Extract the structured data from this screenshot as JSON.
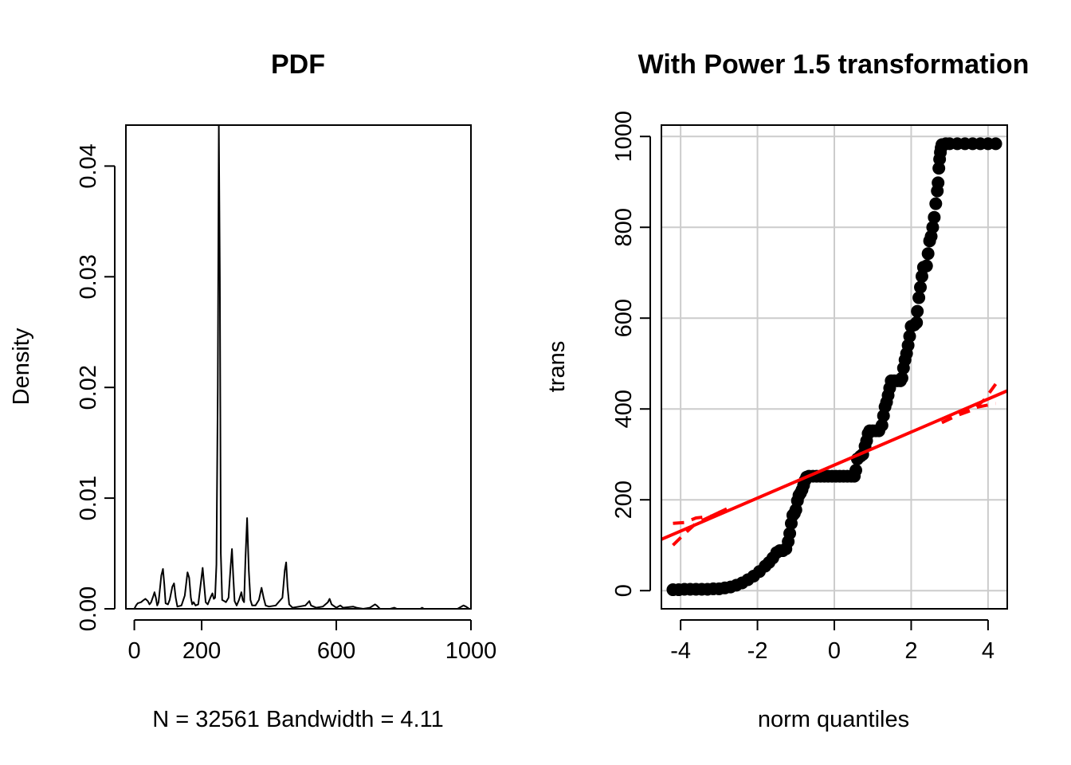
{
  "chart_data": [
    {
      "type": "line",
      "title": "PDF",
      "xlabel": "N = 32561   Bandwidth = 4.11",
      "ylabel": "Density",
      "xlim": [
        -25,
        1000
      ],
      "ylim": [
        0,
        0.0437
      ],
      "xticks": [
        0,
        200,
        600,
        1000
      ],
      "xtick_labels": [
        "0",
        "200",
        "600",
        "1000"
      ],
      "yticks": [
        0,
        0.01,
        0.02,
        0.03,
        0.04
      ],
      "ytick_labels": [
        "0.00",
        "0.01",
        "0.02",
        "0.03",
        "0.04"
      ],
      "grid": false,
      "series": [
        {
          "color": "#000000",
          "points": [
            [
              -5,
              0
            ],
            [
              0,
              0
            ],
            [
              5,
              0.0003
            ],
            [
              10,
              0.0005
            ],
            [
              20,
              0.0006
            ],
            [
              28,
              0.0008
            ],
            [
              33,
              0.0009
            ],
            [
              40,
              0.0007
            ],
            [
              45,
              0.0004
            ],
            [
              50,
              0.0006
            ],
            [
              57,
              0.0012
            ],
            [
              60,
              0.0015
            ],
            [
              64,
              0.001
            ],
            [
              68,
              0.0003
            ],
            [
              72,
              0.0006
            ],
            [
              80,
              0.003
            ],
            [
              85,
              0.0036
            ],
            [
              89,
              0.0022
            ],
            [
              93,
              0.0005
            ],
            [
              100,
              0.0004
            ],
            [
              105,
              0.0008
            ],
            [
              113,
              0.002
            ],
            [
              118,
              0.0023
            ],
            [
              123,
              0.001
            ],
            [
              128,
              0.0002
            ],
            [
              140,
              0.0003
            ],
            [
              150,
              0.0012
            ],
            [
              158,
              0.0033
            ],
            [
              163,
              0.0028
            ],
            [
              168,
              0.001
            ],
            [
              172,
              0.0004
            ],
            [
              176,
              0.0006
            ],
            [
              182,
              0.0003
            ],
            [
              190,
              0.0004
            ],
            [
              197,
              0.0022
            ],
            [
              203,
              0.0037
            ],
            [
              208,
              0.002
            ],
            [
              212,
              0.0006
            ],
            [
              218,
              0.0004
            ],
            [
              226,
              0.001
            ],
            [
              232,
              0.0014
            ],
            [
              236,
              0.0009
            ],
            [
              240,
              0.001
            ],
            [
              244,
              0.004
            ],
            [
              248,
              0.02
            ],
            [
              251,
              0.0437
            ],
            [
              254,
              0.03
            ],
            [
              257,
              0.005
            ],
            [
              261,
              0.0008
            ],
            [
              267,
              0.0007
            ],
            [
              272,
              0.0006
            ],
            [
              280,
              0.001
            ],
            [
              286,
              0.0038
            ],
            [
              290,
              0.0054
            ],
            [
              294,
              0.0028
            ],
            [
              298,
              0.0007
            ],
            [
              304,
              0.0003
            ],
            [
              311,
              0.0008
            ],
            [
              318,
              0.0015
            ],
            [
              322,
              0.0008
            ],
            [
              326,
              0.0006
            ],
            [
              330,
              0.0045
            ],
            [
              335,
              0.0082
            ],
            [
              340,
              0.0035
            ],
            [
              345,
              0.0008
            ],
            [
              350,
              0.0003
            ],
            [
              360,
              0.0003
            ],
            [
              370,
              0.0008
            ],
            [
              378,
              0.0019
            ],
            [
              384,
              0.001
            ],
            [
              390,
              0.0003
            ],
            [
              400,
              0.0002
            ],
            [
              420,
              0.0003
            ],
            [
              440,
              0.001
            ],
            [
              447,
              0.0035
            ],
            [
              451,
              0.0042
            ],
            [
              455,
              0.002
            ],
            [
              460,
              0.0004
            ],
            [
              470,
              0.0001
            ],
            [
              490,
              0.0002
            ],
            [
              508,
              0.0003
            ],
            [
              520,
              0.0007
            ],
            [
              525,
              0.0003
            ],
            [
              540,
              0.0001
            ],
            [
              560,
              0.0002
            ],
            [
              575,
              0.0006
            ],
            [
              580,
              0.0009
            ],
            [
              586,
              0.0004
            ],
            [
              600,
              0.0001
            ],
            [
              612,
              0.0003
            ],
            [
              620,
              0.0001
            ],
            [
              650,
              0.0002
            ],
            [
              660,
              0.0001
            ],
            [
              680,
              0
            ],
            [
              700,
              0.0001
            ],
            [
              715,
              0.0004
            ],
            [
              720,
              0.0003
            ],
            [
              730,
              0
            ],
            [
              760,
              0
            ],
            [
              772,
              0.0001
            ],
            [
              780,
              0
            ],
            [
              850,
              0
            ],
            [
              855,
              0.0001
            ],
            [
              860,
              0
            ],
            [
              960,
              0
            ],
            [
              978,
              0.0003
            ],
            [
              985,
              0.0002
            ],
            [
              995,
              0
            ]
          ]
        }
      ]
    },
    {
      "type": "scatter",
      "title": "With Power 1.5 transformation",
      "xlabel": "norm quantiles",
      "ylabel": "trans",
      "xlim": [
        -4.5,
        4.5
      ],
      "ylim": [
        -40,
        1025
      ],
      "xticks": [
        -4,
        -2,
        0,
        2,
        4
      ],
      "xtick_labels": [
        "-4",
        "-2",
        "0",
        "2",
        "4"
      ],
      "yticks": [
        0,
        200,
        400,
        600,
        800,
        1000
      ],
      "ytick_labels": [
        "0",
        "200",
        "400",
        "600",
        "800",
        "1000"
      ],
      "grid": true,
      "points_color": "#000000",
      "points": [
        [
          -4.2,
          2
        ],
        [
          -4.05,
          2
        ],
        [
          -3.9,
          3
        ],
        [
          -3.75,
          3
        ],
        [
          -3.6,
          3
        ],
        [
          -3.45,
          3
        ],
        [
          -3.3,
          3
        ],
        [
          -3.15,
          4
        ],
        [
          -3.0,
          4
        ],
        [
          -2.85,
          6
        ],
        [
          -2.7,
          8
        ],
        [
          -2.55,
          12
        ],
        [
          -2.4,
          17
        ],
        [
          -2.25,
          24
        ],
        [
          -2.1,
          32
        ],
        [
          -1.95,
          42
        ],
        [
          -1.8,
          54
        ],
        [
          -1.7,
          62
        ],
        [
          -1.6,
          72
        ],
        [
          -1.5,
          84
        ],
        [
          -1.42,
          88
        ],
        [
          -1.34,
          88
        ],
        [
          -1.26,
          92
        ],
        [
          -1.2,
          108
        ],
        [
          -1.16,
          126
        ],
        [
          -1.12,
          148
        ],
        [
          -1.08,
          166
        ],
        [
          -1.04,
          170
        ],
        [
          -1.0,
          178
        ],
        [
          -0.96,
          198
        ],
        [
          -0.92,
          210
        ],
        [
          -0.88,
          215
        ],
        [
          -0.84,
          222
        ],
        [
          -0.8,
          232
        ],
        [
          -0.76,
          243
        ],
        [
          -0.72,
          250
        ],
        [
          -0.66,
          252
        ],
        [
          -0.56,
          252
        ],
        [
          -0.46,
          252
        ],
        [
          -0.36,
          252
        ],
        [
          -0.26,
          252
        ],
        [
          -0.16,
          252
        ],
        [
          -0.06,
          252
        ],
        [
          0.04,
          252
        ],
        [
          0.14,
          252
        ],
        [
          0.24,
          252
        ],
        [
          0.34,
          252
        ],
        [
          0.44,
          252
        ],
        [
          0.52,
          252
        ],
        [
          0.56,
          265
        ],
        [
          0.6,
          290
        ],
        [
          0.68,
          296
        ],
        [
          0.74,
          300
        ],
        [
          0.8,
          318
        ],
        [
          0.84,
          330
        ],
        [
          0.88,
          346
        ],
        [
          0.92,
          352
        ],
        [
          1.0,
          352
        ],
        [
          1.08,
          352
        ],
        [
          1.16,
          352
        ],
        [
          1.24,
          364
        ],
        [
          1.28,
          385
        ],
        [
          1.32,
          405
        ],
        [
          1.36,
          415
        ],
        [
          1.4,
          430
        ],
        [
          1.44,
          446
        ],
        [
          1.48,
          462
        ],
        [
          1.56,
          462
        ],
        [
          1.64,
          462
        ],
        [
          1.72,
          462
        ],
        [
          1.76,
          468
        ],
        [
          1.8,
          490
        ],
        [
          1.84,
          508
        ],
        [
          1.88,
          522
        ],
        [
          1.92,
          540
        ],
        [
          1.96,
          560
        ],
        [
          2.0,
          582
        ],
        [
          2.08,
          585
        ],
        [
          2.14,
          590
        ],
        [
          2.16,
          615
        ],
        [
          2.2,
          645
        ],
        [
          2.24,
          668
        ],
        [
          2.28,
          692
        ],
        [
          2.32,
          712
        ],
        [
          2.4,
          715
        ],
        [
          2.44,
          742
        ],
        [
          2.48,
          770
        ],
        [
          2.52,
          780
        ],
        [
          2.56,
          800
        ],
        [
          2.6,
          822
        ],
        [
          2.64,
          852
        ],
        [
          2.68,
          880
        ],
        [
          2.7,
          898
        ],
        [
          2.72,
          930
        ],
        [
          2.74,
          950
        ],
        [
          2.76,
          965
        ],
        [
          2.78,
          975
        ],
        [
          2.8,
          982
        ],
        [
          2.9,
          984
        ],
        [
          3.0,
          984
        ],
        [
          3.2,
          984
        ],
        [
          3.4,
          984
        ],
        [
          3.6,
          984
        ],
        [
          3.8,
          984
        ],
        [
          4.0,
          984
        ],
        [
          4.2,
          984
        ]
      ],
      "series": [
        {
          "name": "",
          "style": "solid",
          "color": "#ff0000",
          "points": [
            [
              -4.5,
              113
            ],
            [
              4.5,
              440
            ]
          ]
        },
        {
          "name": "",
          "style": "dashed",
          "color": "#ff0000",
          "points": [
            [
              -4.2,
              148
            ],
            [
              -3.9,
              150
            ],
            [
              -3.6,
              160
            ],
            [
              -3.2,
              164
            ],
            [
              -2.8,
              180
            ]
          ]
        },
        {
          "name": "",
          "style": "dashed",
          "color": "#ff0000",
          "points": [
            [
              -4.2,
              100
            ],
            [
              -3.9,
              125
            ],
            [
              -3.6,
              148
            ],
            [
              -3.2,
              164
            ],
            [
              -2.8,
              180
            ]
          ]
        },
        {
          "name": "",
          "style": "dashed",
          "color": "#ff0000",
          "points": [
            [
              2.8,
              370
            ],
            [
              3.2,
              386
            ],
            [
              3.6,
              398
            ],
            [
              3.9,
              420
            ],
            [
              4.2,
              455
            ]
          ]
        },
        {
          "name": "",
          "style": "dashed",
          "color": "#ff0000",
          "points": [
            [
              2.8,
              370
            ],
            [
              3.2,
              386
            ],
            [
              3.6,
              402
            ],
            [
              3.9,
              407
            ],
            [
              4.2,
              412
            ]
          ]
        }
      ]
    }
  ]
}
